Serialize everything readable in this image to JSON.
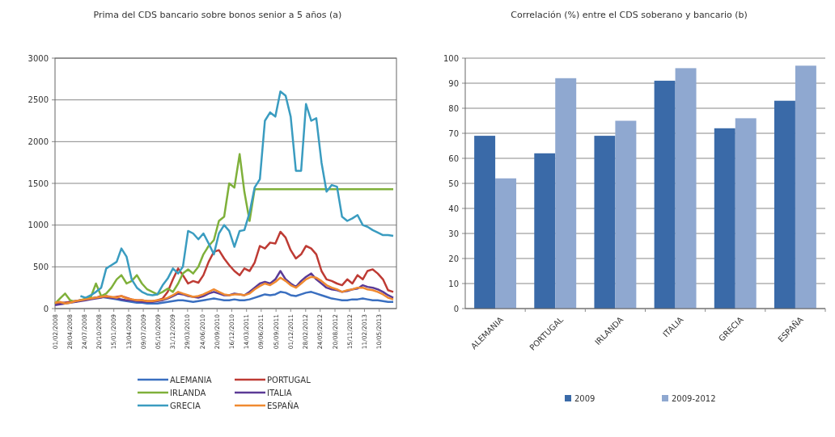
{
  "chart_data": [
    {
      "type": "line",
      "title": "Prima del CDS bancario sobre bonos senior a 5 años (a)",
      "grid": "y",
      "legend": "bottom",
      "x": [
        "2008-02",
        "2008-03",
        "2008-04",
        "2008-05",
        "2008-06",
        "2008-07",
        "2008-08",
        "2008-09",
        "2008-10",
        "2008-11",
        "2008-12",
        "2009-01",
        "2009-02",
        "2009-03",
        "2009-04",
        "2009-05",
        "2009-06",
        "2009-07",
        "2009-08",
        "2009-09",
        "2009-10",
        "2009-11",
        "2009-12",
        "2010-01",
        "2010-02",
        "2010-03",
        "2010-04",
        "2010-05",
        "2010-06",
        "2010-07",
        "2010-08",
        "2010-09",
        "2010-10",
        "2010-11",
        "2010-12",
        "2011-01",
        "2011-02",
        "2011-03",
        "2011-04",
        "2011-05",
        "2011-06",
        "2011-07",
        "2011-08",
        "2011-09",
        "2011-10",
        "2011-11",
        "2011-12",
        "2012-01",
        "2012-02",
        "2012-03",
        "2012-04",
        "2012-05",
        "2012-06",
        "2012-07",
        "2012-08",
        "2012-09",
        "2012-10",
        "2012-11",
        "2012-12",
        "2013-01",
        "2013-02",
        "2013-03",
        "2013-04",
        "2013-05",
        "2013-06",
        "2013-07",
        "2013-08"
      ],
      "xlim": [
        "2008-02-01",
        "2013-08-20"
      ],
      "xticks": [
        {
          "value": "2008-02-01",
          "label": "01/02/2008"
        },
        {
          "value": "2008-04-28",
          "label": "28/04/2008"
        },
        {
          "value": "2008-07-24",
          "label": "24/07/2008"
        },
        {
          "value": "2008-10-20",
          "label": "20/10/2008"
        },
        {
          "value": "2009-01-15",
          "label": "15/01/2009"
        },
        {
          "value": "2009-04-13",
          "label": "13/04/2009"
        },
        {
          "value": "2009-07-09",
          "label": "09/07/2009"
        },
        {
          "value": "2009-10-05",
          "label": "05/10/2009"
        },
        {
          "value": "2009-12-31",
          "label": "31/12/2009"
        },
        {
          "value": "2010-03-29",
          "label": "29/03/2010"
        },
        {
          "value": "2010-06-24",
          "label": "24/06/2010"
        },
        {
          "value": "2010-09-20",
          "label": "20/09/2010"
        },
        {
          "value": "2010-12-16",
          "label": "16/12/2010"
        },
        {
          "value": "2011-03-14",
          "label": "14/03/2011"
        },
        {
          "value": "2011-06-09",
          "label": "09/06/2011"
        },
        {
          "value": "2011-09-05",
          "label": "05/09/2011"
        },
        {
          "value": "2011-12-01",
          "label": "01/12/2011"
        },
        {
          "value": "2012-02-28",
          "label": "28/02/2012"
        },
        {
          "value": "2012-05-24",
          "label": "24/05/2012"
        },
        {
          "value": "2012-08-20",
          "label": "20/08/2012"
        },
        {
          "value": "2012-11-15",
          "label": "15/11/2012"
        },
        {
          "value": "2013-02-11",
          "label": "11/02/2013"
        },
        {
          "value": "2013-05-10",
          "label": "10/05/2013"
        }
      ],
      "ylim": [
        0,
        3000
      ],
      "yticks": [
        0,
        500,
        1000,
        1500,
        2000,
        2500,
        3000
      ],
      "series": [
        {
          "name": "ALEMANIA",
          "color": "#3a6fc0",
          "values": [
            60,
            60,
            70,
            80,
            90,
            100,
            110,
            120,
            130,
            140,
            130,
            120,
            110,
            100,
            90,
            80,
            70,
            70,
            60,
            60,
            60,
            70,
            80,
            90,
            100,
            100,
            90,
            80,
            90,
            100,
            110,
            120,
            110,
            100,
            100,
            110,
            100,
            100,
            110,
            130,
            150,
            170,
            160,
            170,
            200,
            190,
            160,
            150,
            170,
            190,
            200,
            180,
            160,
            140,
            120,
            110,
            100,
            100,
            110,
            110,
            120,
            110,
            100,
            100,
            90,
            80,
            80
          ]
        },
        {
          "name": "PORTUGAL",
          "color": "#be3b34",
          "values": [
            60,
            70,
            70,
            80,
            90,
            100,
            110,
            120,
            130,
            150,
            140,
            130,
            140,
            150,
            130,
            110,
            100,
            100,
            90,
            90,
            100,
            120,
            200,
            350,
            480,
            400,
            300,
            330,
            310,
            400,
            560,
            680,
            700,
            600,
            520,
            450,
            400,
            480,
            450,
            550,
            750,
            720,
            790,
            780,
            920,
            850,
            700,
            600,
            650,
            750,
            720,
            650,
            450,
            350,
            330,
            300,
            280,
            350,
            300,
            400,
            350,
            450,
            470,
            420,
            350,
            220,
            200
          ]
        },
        {
          "name": "IRLANDA",
          "color": "#7fb03a",
          "values": [
            60,
            120,
            180,
            100,
            80,
            100,
            120,
            140,
            300,
            150,
            180,
            250,
            350,
            400,
            300,
            330,
            400,
            300,
            230,
            200,
            170,
            200,
            240,
            200,
            300,
            420,
            470,
            420,
            500,
            650,
            750,
            820,
            1050,
            1100,
            1500,
            1450,
            1850,
            1400,
            1050,
            1430,
            1430,
            1430,
            1430,
            1430,
            1430,
            1430,
            1430,
            1430,
            1430,
            1430,
            1430,
            1430,
            1430,
            1430,
            1430,
            1430,
            1430,
            1430,
            1430,
            1430,
            1430,
            1430,
            1430,
            1430,
            1430,
            1430,
            1430
          ]
        },
        {
          "name": "ITALIA",
          "color": "#5b3b96",
          "values": [
            40,
            50,
            60,
            70,
            80,
            90,
            100,
            110,
            120,
            130,
            150,
            130,
            120,
            110,
            100,
            100,
            90,
            80,
            80,
            80,
            90,
            100,
            120,
            150,
            180,
            170,
            150,
            140,
            130,
            150,
            180,
            200,
            180,
            160,
            160,
            180,
            170,
            160,
            200,
            250,
            300,
            320,
            300,
            350,
            450,
            350,
            300,
            260,
            330,
            380,
            420,
            350,
            300,
            250,
            230,
            220,
            200,
            210,
            230,
            240,
            280,
            260,
            250,
            230,
            200,
            160,
            130
          ]
        },
        {
          "name": "GRECIA",
          "color": "#3a9cc0",
          "values": [
            null,
            null,
            null,
            null,
            null,
            150,
            130,
            160,
            200,
            250,
            480,
            520,
            560,
            720,
            620,
            350,
            250,
            200,
            170,
            160,
            170,
            280,
            360,
            480,
            420,
            500,
            930,
            900,
            830,
            900,
            780,
            650,
            900,
            1000,
            930,
            740,
            930,
            940,
            1150,
            1450,
            1550,
            2250,
            2350,
            2300,
            2600,
            2550,
            2300,
            1650,
            1650,
            2450,
            2250,
            2280,
            1750,
            1400,
            1480,
            1460,
            1100,
            1050,
            1080,
            1120,
            1000,
            980,
            940,
            910,
            880,
            880,
            870
          ]
        },
        {
          "name": "ESPAÑA",
          "color": "#f08a30",
          "values": [
            70,
            80,
            60,
            70,
            90,
            100,
            110,
            120,
            130,
            140,
            150,
            140,
            130,
            150,
            120,
            110,
            100,
            100,
            90,
            90,
            100,
            110,
            130,
            160,
            200,
            180,
            160,
            140,
            150,
            170,
            200,
            230,
            200,
            170,
            160,
            170,
            170,
            160,
            180,
            230,
            270,
            300,
            280,
            320,
            370,
            330,
            280,
            250,
            300,
            350,
            380,
            370,
            330,
            280,
            250,
            230,
            200,
            220,
            230,
            250,
            250,
            230,
            220,
            200,
            170,
            130,
            110
          ]
        }
      ]
    },
    {
      "type": "bar",
      "title": "Correlación (%) entre el CDS soberano y bancario (b)",
      "grid": "y",
      "legend": "bottom",
      "categories": [
        "ALEMANIA",
        "PORTUGAL",
        "IRLANDA",
        "ITALIA",
        "GRECIA",
        "ESPAÑA"
      ],
      "ylim": [
        0,
        100
      ],
      "yticks": [
        0,
        10,
        20,
        30,
        40,
        50,
        60,
        70,
        80,
        90,
        100
      ],
      "series": [
        {
          "name": "2009",
          "color": "#3a6aa8",
          "values": [
            69,
            62,
            69,
            91,
            72,
            83
          ]
        },
        {
          "name": "2009-2012",
          "color": "#8fa8d0",
          "values": [
            52,
            92,
            75,
            96,
            76,
            97
          ]
        }
      ]
    }
  ]
}
